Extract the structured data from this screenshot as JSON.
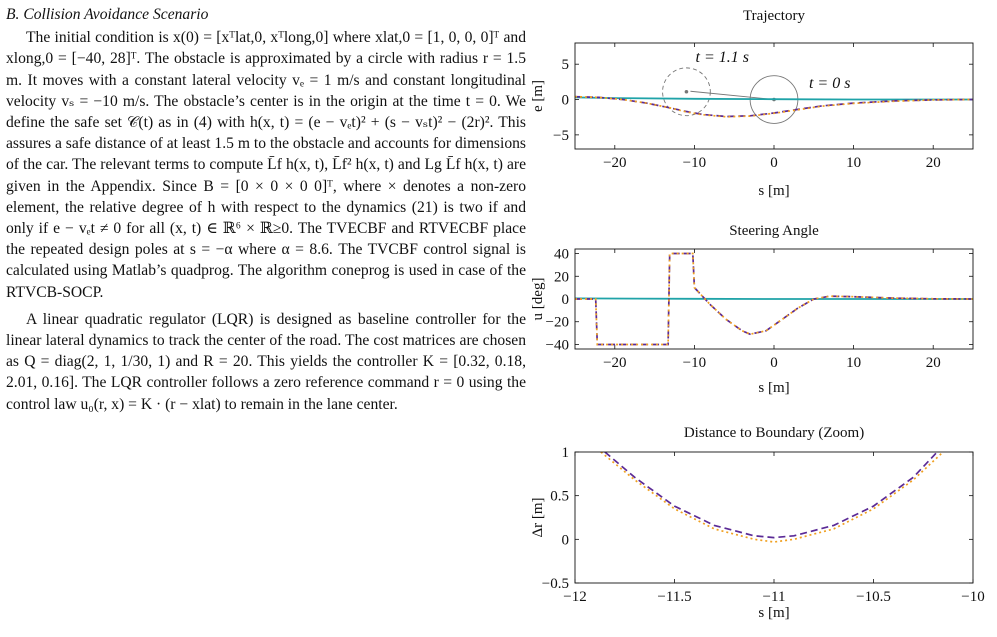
{
  "section": {
    "title": "B. Collision Avoidance Scenario"
  },
  "paragraphs": [
    "The initial condition is x(0) = [xᵀlat,0, xᵀlong,0] where xlat,0 = [1, 0, 0, 0]ᵀ and xlong,0 = [−40, 28]ᵀ. The obstacle is approximated by a circle with radius r = 1.5 m. It moves with a constant lateral velocity vₑ = 1 m/s and constant longitudinal velocity vₛ = −10 m/s. The obstacle’s center is in the origin at the time t = 0. We define the safe set 𝒞(t) as in (4) with h(x, t) = (e − vₑt)² + (s − vₛt)² − (2r)². This assures a safe distance of at least 1.5 m to the obstacle and accounts for dimensions of the car. The relevant terms to compute L̄f h(x, t), L̄f² h(x, t) and Lg L̄f h(x, t) are given in the Appendix. Since B = [0 × 0 × 0 0]ᵀ, where × denotes a non-zero element, the relative degree of h with respect to the dynamics (21) is two if and only if e − vₑt ≠ 0 for all (x, t) ∈ ℝ⁶ × ℝ≥0. The TVECBF and RTVECBF place the repeated design poles at s = −α where α = 8.6. The TVCBF control signal is calculated using Matlab’s quadprog. The algorithm coneprog is used in case of the RTVCB-SOCP.",
    "A linear quadratic regulator (LQR) is designed as baseline controller for the linear lateral dynamics to track the center of the road. The cost matrices are chosen as Q = diag(2, 1, 1/30, 1) and R = 20. This yields the controller K = [0.32, 0.18, 2.01, 0.16]. The LQR controller follows a zero reference command r = 0 using the control law u₀(r, x) = K · (r − xlat) to remain in the lane center."
  ],
  "colors": {
    "teal": "#1fa3a8",
    "purple": "#5b2a96",
    "orange": "#f0a020",
    "circle": "#777777",
    "axis": "#111111"
  },
  "chart_data": [
    {
      "type": "line",
      "title": "Trajectory",
      "xlabel": "s [m]",
      "ylabel": "e [m]",
      "xlim": [
        -25,
        25
      ],
      "ylim": [
        -7,
        8
      ],
      "xticks": [
        -20,
        -10,
        0,
        10,
        20
      ],
      "yticks": [
        -5,
        0,
        5
      ],
      "xticklabels": [
        "−20",
        "−10",
        "0",
        "10",
        "20"
      ],
      "yticklabels": [
        "−5",
        "0",
        "5"
      ],
      "annotations": [
        {
          "text": "t = 1.1 s",
          "x": -6.5,
          "y": 5.3
        },
        {
          "text": "t = 0 s",
          "x": 7,
          "y": 1.6
        }
      ],
      "obstacles": [
        {
          "label": "t = 1.1 s",
          "cx": -11,
          "cy": 1.1,
          "r": 3,
          "dashed": true
        },
        {
          "label": "t = 0 s",
          "cx": 0,
          "cy": 0,
          "r": 3,
          "dashed": false
        }
      ],
      "series": [
        {
          "color": "teal",
          "dash": "",
          "x": [
            -25,
            -20,
            -10,
            0,
            10,
            20,
            25
          ],
          "y": [
            0.3,
            0.2,
            0.1,
            0.05,
            0.0,
            0.0,
            0.0
          ]
        },
        {
          "color": "purple",
          "dash": "7,4",
          "x": [
            -25,
            -22,
            -19,
            -16,
            -13,
            -11,
            -9,
            -6,
            -3,
            0,
            3,
            6,
            10,
            15,
            20,
            25
          ],
          "y": [
            0.4,
            0.3,
            0.0,
            -0.5,
            -1.2,
            -1.7,
            -2.1,
            -2.4,
            -2.3,
            -1.9,
            -1.4,
            -0.9,
            -0.5,
            -0.2,
            -0.05,
            0.0
          ]
        },
        {
          "color": "orange",
          "dash": "2,3",
          "x": [
            -25,
            -22,
            -19,
            -16,
            -13,
            -11,
            -9,
            -6,
            -3,
            0,
            3,
            6,
            10,
            15,
            20,
            25
          ],
          "y": [
            0.4,
            0.3,
            0.0,
            -0.5,
            -1.2,
            -1.75,
            -2.15,
            -2.45,
            -2.35,
            -1.95,
            -1.45,
            -0.95,
            -0.55,
            -0.25,
            -0.05,
            0.0
          ]
        }
      ]
    },
    {
      "type": "line",
      "title": "Steering Angle",
      "xlabel": "s [m]",
      "ylabel": "u [deg]",
      "xlim": [
        -25,
        25
      ],
      "ylim": [
        -44,
        44
      ],
      "xticks": [
        -20,
        -10,
        0,
        10,
        20
      ],
      "yticks": [
        -40,
        -20,
        0,
        20,
        40
      ],
      "xticklabels": [
        "−20",
        "−10",
        "0",
        "10",
        "20"
      ],
      "yticklabels": [
        "−40",
        "−20",
        "0",
        "20",
        "40"
      ],
      "series": [
        {
          "color": "teal",
          "dash": "",
          "x": [
            -25,
            -10,
            0,
            10,
            25
          ],
          "y": [
            0.5,
            0.2,
            0,
            0,
            0
          ]
        },
        {
          "color": "purple",
          "dash": "7,4",
          "x": [
            -25,
            -22.4,
            -22.2,
            -13.3,
            -13.1,
            -10.2,
            -10.0,
            -8,
            -6,
            -4,
            -3,
            -1,
            1,
            3,
            5,
            7,
            10,
            15,
            20,
            25
          ],
          "y": [
            0,
            0,
            -40,
            -40,
            40,
            40,
            10,
            -5,
            -18,
            -28,
            -31,
            -28,
            -18,
            -8,
            0,
            2.5,
            2,
            0.8,
            0.2,
            0
          ]
        },
        {
          "color": "orange",
          "dash": "2,3",
          "x": [
            -25,
            -22.4,
            -22.2,
            -13.3,
            -13.1,
            -10.2,
            -10.0,
            -8,
            -6,
            -4,
            -3,
            -1,
            1,
            3,
            5,
            7,
            10,
            15,
            20,
            25
          ],
          "y": [
            0,
            0,
            -40,
            -40,
            40,
            40,
            10,
            -5,
            -18,
            -28,
            -31,
            -28,
            -18,
            -8,
            0,
            2.5,
            2,
            0.8,
            0.2,
            0
          ]
        }
      ]
    },
    {
      "type": "line",
      "title": "Distance to Boundary (Zoom)",
      "xlabel": "s [m]",
      "ylabel": "Δr [m]",
      "xlim": [
        -12,
        -10
      ],
      "ylim": [
        -0.5,
        1
      ],
      "xticks": [
        -12,
        -11.5,
        -11,
        -10.5,
        -10
      ],
      "yticks": [
        -0.5,
        0,
        0.5,
        1
      ],
      "xticklabels": [
        "−12",
        "−11.5",
        "−11",
        "−10.5",
        "−10"
      ],
      "yticklabels": [
        "−0.5",
        "0",
        "0.5",
        "1"
      ],
      "series": [
        {
          "color": "purple",
          "dash": "7,4",
          "x": [
            -11.85,
            -11.7,
            -11.5,
            -11.3,
            -11.1,
            -11.0,
            -10.9,
            -10.7,
            -10.5,
            -10.3,
            -10.18
          ],
          "y": [
            1.0,
            0.71,
            0.38,
            0.16,
            0.04,
            0.02,
            0.04,
            0.16,
            0.38,
            0.71,
            1.0
          ]
        },
        {
          "color": "orange",
          "dash": "2,3",
          "x": [
            -11.87,
            -11.7,
            -11.5,
            -11.3,
            -11.1,
            -11.0,
            -10.9,
            -10.7,
            -10.5,
            -10.3,
            -10.15
          ],
          "y": [
            1.0,
            0.68,
            0.35,
            0.12,
            0.0,
            -0.03,
            0.0,
            0.12,
            0.35,
            0.68,
            1.0
          ]
        }
      ]
    }
  ]
}
